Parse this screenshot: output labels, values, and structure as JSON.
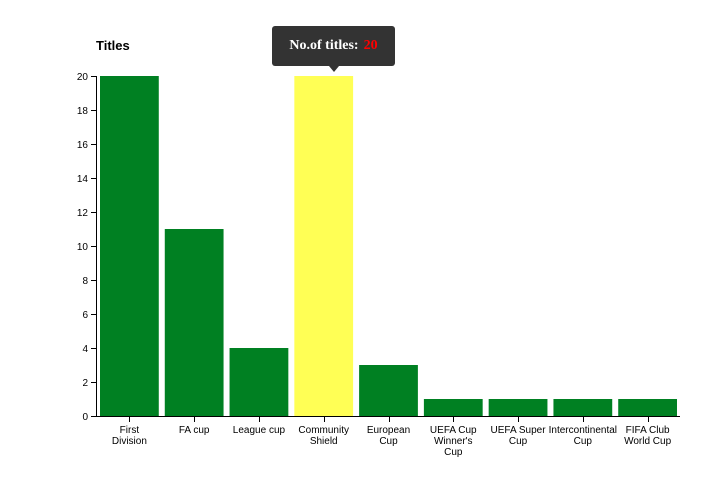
{
  "chart_data": {
    "type": "bar",
    "title": "",
    "xlabel": "",
    "ylabel": "Titles",
    "ylim": [
      0,
      20
    ],
    "yticks": [
      0,
      2,
      4,
      6,
      8,
      10,
      12,
      14,
      16,
      18,
      20
    ],
    "grid": false,
    "categories": [
      "First Division",
      "FA cup",
      "League cup",
      "Community Shield",
      "European Cup",
      "UEFA Cup Winner's Cup",
      "UEFA Super Cup",
      "Intercontinental Cup",
      "FIFA Club World Cup"
    ],
    "category_label_lines": [
      [
        "First",
        "Division"
      ],
      [
        "FA cup"
      ],
      [
        "League cup"
      ],
      [
        "Community",
        "Shield"
      ],
      [
        "European",
        "Cup"
      ],
      [
        "UEFA Cup",
        "Winner's",
        "Cup"
      ],
      [
        "UEFA Super",
        "Cup"
      ],
      [
        "Intercontinental",
        "Cup"
      ],
      [
        "FIFA Club",
        "World Cup"
      ]
    ],
    "values": [
      20,
      11,
      4,
      20,
      3,
      1,
      1,
      1,
      1
    ],
    "highlighted_category": "Community Shield",
    "colors": {
      "bar": "#008022",
      "highlight": "#ffff55"
    }
  },
  "tooltip": {
    "label": "No.of titles:",
    "value": "20",
    "value_color": "#ff0000"
  }
}
